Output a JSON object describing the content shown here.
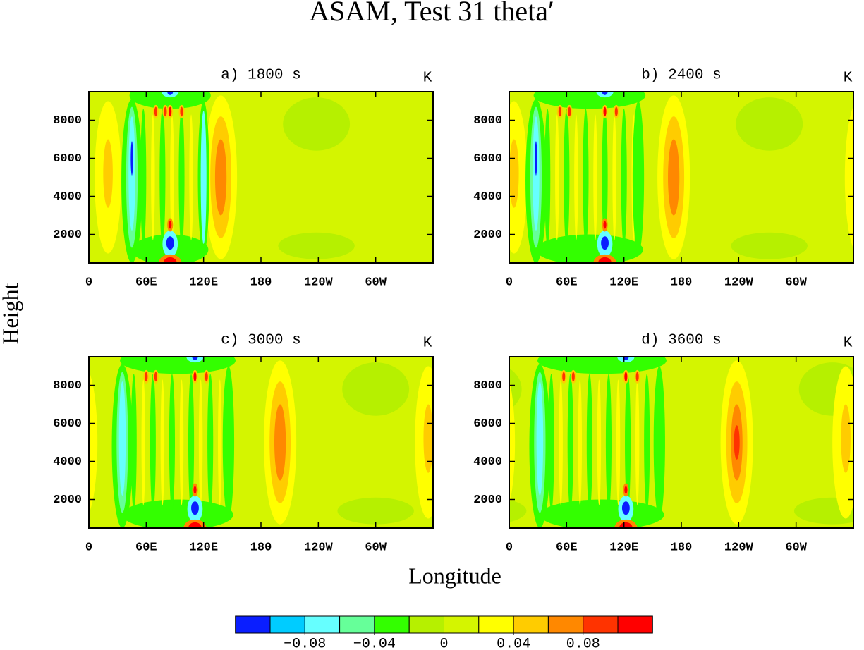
{
  "title": "ASAM, Test 31 theta′",
  "x_label": "Longitude",
  "y_label": "Height",
  "chart_data": [
    {
      "type": "contour",
      "title": "a) 1800 s",
      "units": "K",
      "xlim": [
        0,
        360
      ],
      "ylim": [
        500,
        9500
      ],
      "xticks": [
        0,
        {
          "value": 60,
          "label": "60E"
        },
        {
          "value": 120,
          "label": "120E"
        },
        180,
        {
          "value": 240,
          "label": "120W"
        },
        {
          "value": 300,
          "label": "60W"
        }
      ],
      "yticks": [
        2000,
        4000,
        6000,
        8000
      ]
    },
    {
      "type": "contour",
      "title": "b) 2400 s",
      "units": "K",
      "xlim": [
        0,
        360
      ],
      "ylim": [
        500,
        9500
      ],
      "xticks": [
        0,
        {
          "value": 60,
          "label": "60E"
        },
        {
          "value": 120,
          "label": "120E"
        },
        180,
        {
          "value": 240,
          "label": "120W"
        },
        {
          "value": 300,
          "label": "60W"
        }
      ],
      "yticks": [
        2000,
        4000,
        6000,
        8000
      ]
    },
    {
      "type": "contour",
      "title": "c) 3000 s",
      "units": "K",
      "xlim": [
        0,
        360
      ],
      "ylim": [
        500,
        9500
      ],
      "xticks": [
        0,
        {
          "value": 60,
          "label": "60E"
        },
        {
          "value": 120,
          "label": "120E"
        },
        180,
        {
          "value": 240,
          "label": "120W"
        },
        {
          "value": 300,
          "label": "60W"
        }
      ],
      "yticks": [
        2000,
        4000,
        6000,
        8000
      ]
    },
    {
      "type": "contour",
      "title": "d) 3600 s",
      "units": "K",
      "xlim": [
        0,
        360
      ],
      "ylim": [
        500,
        9500
      ],
      "xticks": [
        0,
        {
          "value": 60,
          "label": "60E"
        },
        {
          "value": 120,
          "label": "120E"
        },
        180,
        {
          "value": 240,
          "label": "120W"
        },
        {
          "value": 300,
          "label": "60W"
        }
      ],
      "yticks": [
        2000,
        4000,
        6000,
        8000
      ]
    }
  ],
  "colorbar": {
    "colors": [
      "#0a1eff",
      "#00ccff",
      "#66ffff",
      "#66ff99",
      "#33ff00",
      "#b6f000",
      "#d4f500",
      "#ffff00",
      "#ffcc00",
      "#ff8800",
      "#ff3300",
      "#ff0000"
    ],
    "levels": [
      -0.1,
      -0.08,
      -0.06,
      -0.04,
      -0.02,
      0,
      0.02,
      0.04,
      0.06,
      0.08,
      0.1
    ],
    "ticks": [
      {
        "value": -0.08,
        "label": "−0.08"
      },
      {
        "value": -0.04,
        "label": "−0.04"
      },
      0,
      {
        "value": 0.04,
        "label": "0.04"
      },
      {
        "value": 0.08,
        "label": "0.08"
      }
    ]
  }
}
